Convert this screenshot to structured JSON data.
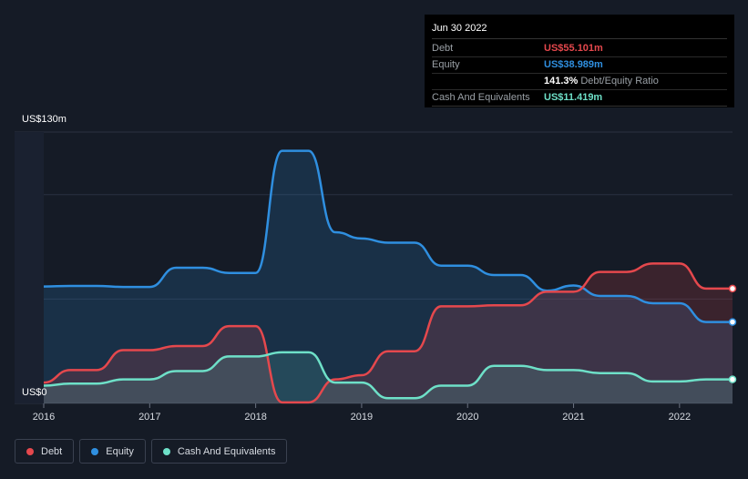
{
  "tooltip": {
    "date": "Jun 30 2022",
    "rows": [
      {
        "label": "Debt",
        "value": "US$55.101m",
        "color": "#e5484d"
      },
      {
        "label": "Equity",
        "value": "US$38.989m",
        "color": "#2f8fe0"
      }
    ],
    "ratio_value": "141.3%",
    "ratio_label": "Debt/Equity Ratio",
    "cash_label": "Cash And Equivalents",
    "cash_value": "US$11.419m",
    "cash_color": "#6ee0c8"
  },
  "y_axis": {
    "top_label": "US$130m",
    "bottom_label": "US$0"
  },
  "legend": [
    {
      "label": "Debt",
      "color": "#e5484d"
    },
    {
      "label": "Equity",
      "color": "#2f8fe0"
    },
    {
      "label": "Cash And Equivalents",
      "color": "#6ee0c8"
    }
  ],
  "chart_data": {
    "type": "area",
    "ylim": [
      0,
      130
    ],
    "xlim": [
      2016.0,
      2022.5
    ],
    "x_ticks": [
      2016,
      2017,
      2018,
      2019,
      2020,
      2021,
      2022
    ],
    "series": [
      {
        "name": "Equity",
        "color": "#2f8fe0",
        "points": [
          [
            2016.0,
            56
          ],
          [
            2016.25,
            56.3
          ],
          [
            2016.5,
            56.3
          ],
          [
            2016.75,
            55.8
          ],
          [
            2017.0,
            55.8
          ],
          [
            2017.25,
            65
          ],
          [
            2017.5,
            65
          ],
          [
            2017.75,
            62.5
          ],
          [
            2018.0,
            62.5
          ],
          [
            2018.25,
            121
          ],
          [
            2018.5,
            121
          ],
          [
            2018.75,
            82
          ],
          [
            2019.0,
            79
          ],
          [
            2019.25,
            77
          ],
          [
            2019.5,
            77
          ],
          [
            2019.75,
            66
          ],
          [
            2020.0,
            66
          ],
          [
            2020.25,
            61.5
          ],
          [
            2020.5,
            61.5
          ],
          [
            2020.75,
            54
          ],
          [
            2021.0,
            56.5
          ],
          [
            2021.25,
            51.5
          ],
          [
            2021.5,
            51.5
          ],
          [
            2021.75,
            48
          ],
          [
            2022.0,
            48
          ],
          [
            2022.25,
            39
          ],
          [
            2022.5,
            39
          ]
        ]
      },
      {
        "name": "Debt",
        "color": "#e5484d",
        "points": [
          [
            2016.0,
            10
          ],
          [
            2016.25,
            16
          ],
          [
            2016.5,
            16
          ],
          [
            2016.75,
            25.5
          ],
          [
            2017.0,
            25.5
          ],
          [
            2017.25,
            27.5
          ],
          [
            2017.5,
            27.5
          ],
          [
            2017.75,
            37
          ],
          [
            2018.0,
            37
          ],
          [
            2018.25,
            0.5
          ],
          [
            2018.5,
            0.5
          ],
          [
            2018.75,
            11.5
          ],
          [
            2019.0,
            13.5
          ],
          [
            2019.25,
            25
          ],
          [
            2019.5,
            25
          ],
          [
            2019.75,
            46.5
          ],
          [
            2020.0,
            46.5
          ],
          [
            2020.25,
            47
          ],
          [
            2020.5,
            47
          ],
          [
            2020.75,
            53.5
          ],
          [
            2021.0,
            53.5
          ],
          [
            2021.25,
            63
          ],
          [
            2021.5,
            63
          ],
          [
            2021.75,
            67
          ],
          [
            2022.0,
            67
          ],
          [
            2022.25,
            55
          ],
          [
            2022.5,
            55
          ]
        ]
      },
      {
        "name": "Cash And Equivalents",
        "color": "#6ee0c8",
        "points": [
          [
            2016.0,
            8.5
          ],
          [
            2016.25,
            9.5
          ],
          [
            2016.5,
            9.5
          ],
          [
            2016.75,
            11.5
          ],
          [
            2017.0,
            11.5
          ],
          [
            2017.25,
            15.5
          ],
          [
            2017.5,
            15.5
          ],
          [
            2017.75,
            22.5
          ],
          [
            2018.0,
            22.5
          ],
          [
            2018.25,
            24.5
          ],
          [
            2018.5,
            24.5
          ],
          [
            2018.75,
            10
          ],
          [
            2019.0,
            10
          ],
          [
            2019.25,
            2.5
          ],
          [
            2019.5,
            2.5
          ],
          [
            2019.75,
            8.5
          ],
          [
            2020.0,
            8.5
          ],
          [
            2020.25,
            18
          ],
          [
            2020.5,
            18
          ],
          [
            2020.75,
            16
          ],
          [
            2021.0,
            16
          ],
          [
            2021.25,
            14.5
          ],
          [
            2021.5,
            14.5
          ],
          [
            2021.75,
            10.5
          ],
          [
            2022.0,
            10.5
          ],
          [
            2022.25,
            11.5
          ],
          [
            2022.5,
            11.5
          ]
        ]
      }
    ]
  }
}
